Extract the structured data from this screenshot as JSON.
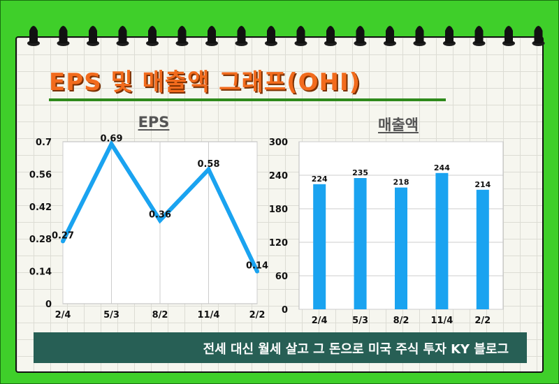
{
  "header": {
    "title": "EPS 및 매출액 그래프(OHI)"
  },
  "footer": {
    "text": "전세 대신 월세 살고 그 돈으로 미국 주식 투자 KY 블로그"
  },
  "colors": {
    "background": "#3fcf2a",
    "title": "#f26b1d",
    "series": "#1aa3f0",
    "footer": "#275f55"
  },
  "chart_data": [
    {
      "type": "line",
      "title": "EPS",
      "categories": [
        "2/4",
        "5/3",
        "8/2",
        "11/4",
        "2/2"
      ],
      "values": [
        0.27,
        0.69,
        0.36,
        0.58,
        0.14
      ],
      "ylim": [
        0,
        0.7
      ],
      "yticks": [
        "0",
        "0.14",
        "0.28",
        "0.42",
        "0.56",
        "0.7"
      ],
      "grid": "vertical"
    },
    {
      "type": "bar",
      "title": "매출액",
      "categories": [
        "2/4",
        "5/3",
        "8/2",
        "11/4",
        "2/2"
      ],
      "values": [
        224,
        235,
        218,
        244,
        214
      ],
      "ylim": [
        0,
        300
      ],
      "yticks": [
        "0",
        "60",
        "120",
        "180",
        "240",
        "300"
      ],
      "grid": "horizontal"
    }
  ]
}
